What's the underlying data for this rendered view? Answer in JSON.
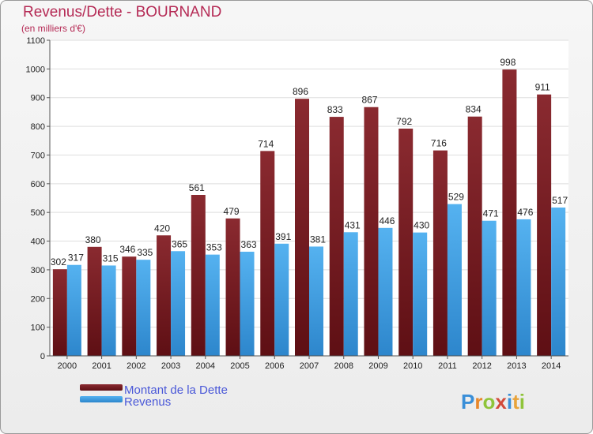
{
  "chart_data": {
    "type": "bar",
    "title": "Revenus/Dette - BOURNAND",
    "subtitle": "(en milliers d'€)",
    "categories": [
      "2000",
      "2001",
      "2002",
      "2003",
      "2004",
      "2005",
      "2006",
      "2007",
      "2008",
      "2009",
      "2010",
      "2011",
      "2012",
      "2013",
      "2014"
    ],
    "series": [
      {
        "name": "Montant de la Dette",
        "values": [
          302,
          380,
          346,
          420,
          561,
          479,
          714,
          896,
          833,
          867,
          792,
          716,
          834,
          998,
          911
        ],
        "color": "#7a1f24"
      },
      {
        "name": "Revenus",
        "values": [
          317,
          315,
          335,
          365,
          353,
          363,
          391,
          381,
          431,
          446,
          430,
          529,
          471,
          476,
          517
        ],
        "color": "#3d9ee5"
      }
    ],
    "yticks": [
      0,
      100,
      200,
      300,
      400,
      500,
      600,
      700,
      800,
      900,
      1000,
      1100
    ],
    "ylim": [
      0,
      1100
    ],
    "grid": true,
    "legend_position": "bottom-left",
    "logo": "Proxiti"
  }
}
